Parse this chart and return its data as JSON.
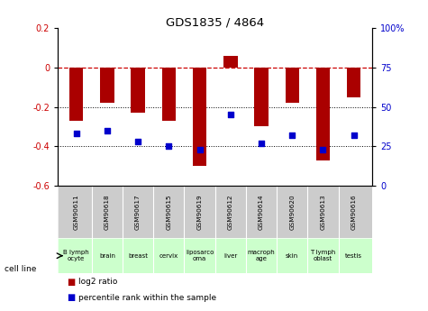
{
  "title": "GDS1835 / 4864",
  "samples": [
    "GSM90611",
    "GSM90618",
    "GSM90617",
    "GSM90615",
    "GSM90619",
    "GSM90612",
    "GSM90614",
    "GSM90620",
    "GSM90613",
    "GSM90616"
  ],
  "cell_lines": [
    "B lymph\nocyte",
    "brain",
    "breast",
    "cervix",
    "liposarco\noma",
    "liver",
    "macroph\nage",
    "skin",
    "T lymph\noblast",
    "testis"
  ],
  "log2_ratio": [
    -0.27,
    -0.18,
    -0.23,
    -0.27,
    -0.5,
    0.06,
    -0.3,
    -0.18,
    -0.47,
    -0.15
  ],
  "percentile_rank": [
    33,
    35,
    28,
    25,
    23,
    45,
    27,
    32,
    23,
    32
  ],
  "ylim_left": [
    -0.6,
    0.2
  ],
  "ylim_right": [
    0,
    100
  ],
  "yticks_left": [
    -0.6,
    -0.4,
    -0.2,
    0.0,
    0.2
  ],
  "yticks_right": [
    0,
    25,
    50,
    75,
    100
  ],
  "bar_color": "#aa0000",
  "dot_color": "#0000cc",
  "hline_color": "#cc0000",
  "grid_color": "#000000",
  "bg_color": "#ffffff",
  "gsm_bg": "#cccccc",
  "cell_bg_light": "#ccffcc",
  "cell_bg_dark": "#99ee99",
  "legend_bar_label": "log2 ratio",
  "legend_dot_label": "percentile rank within the sample",
  "cell_line_label": "cell line"
}
